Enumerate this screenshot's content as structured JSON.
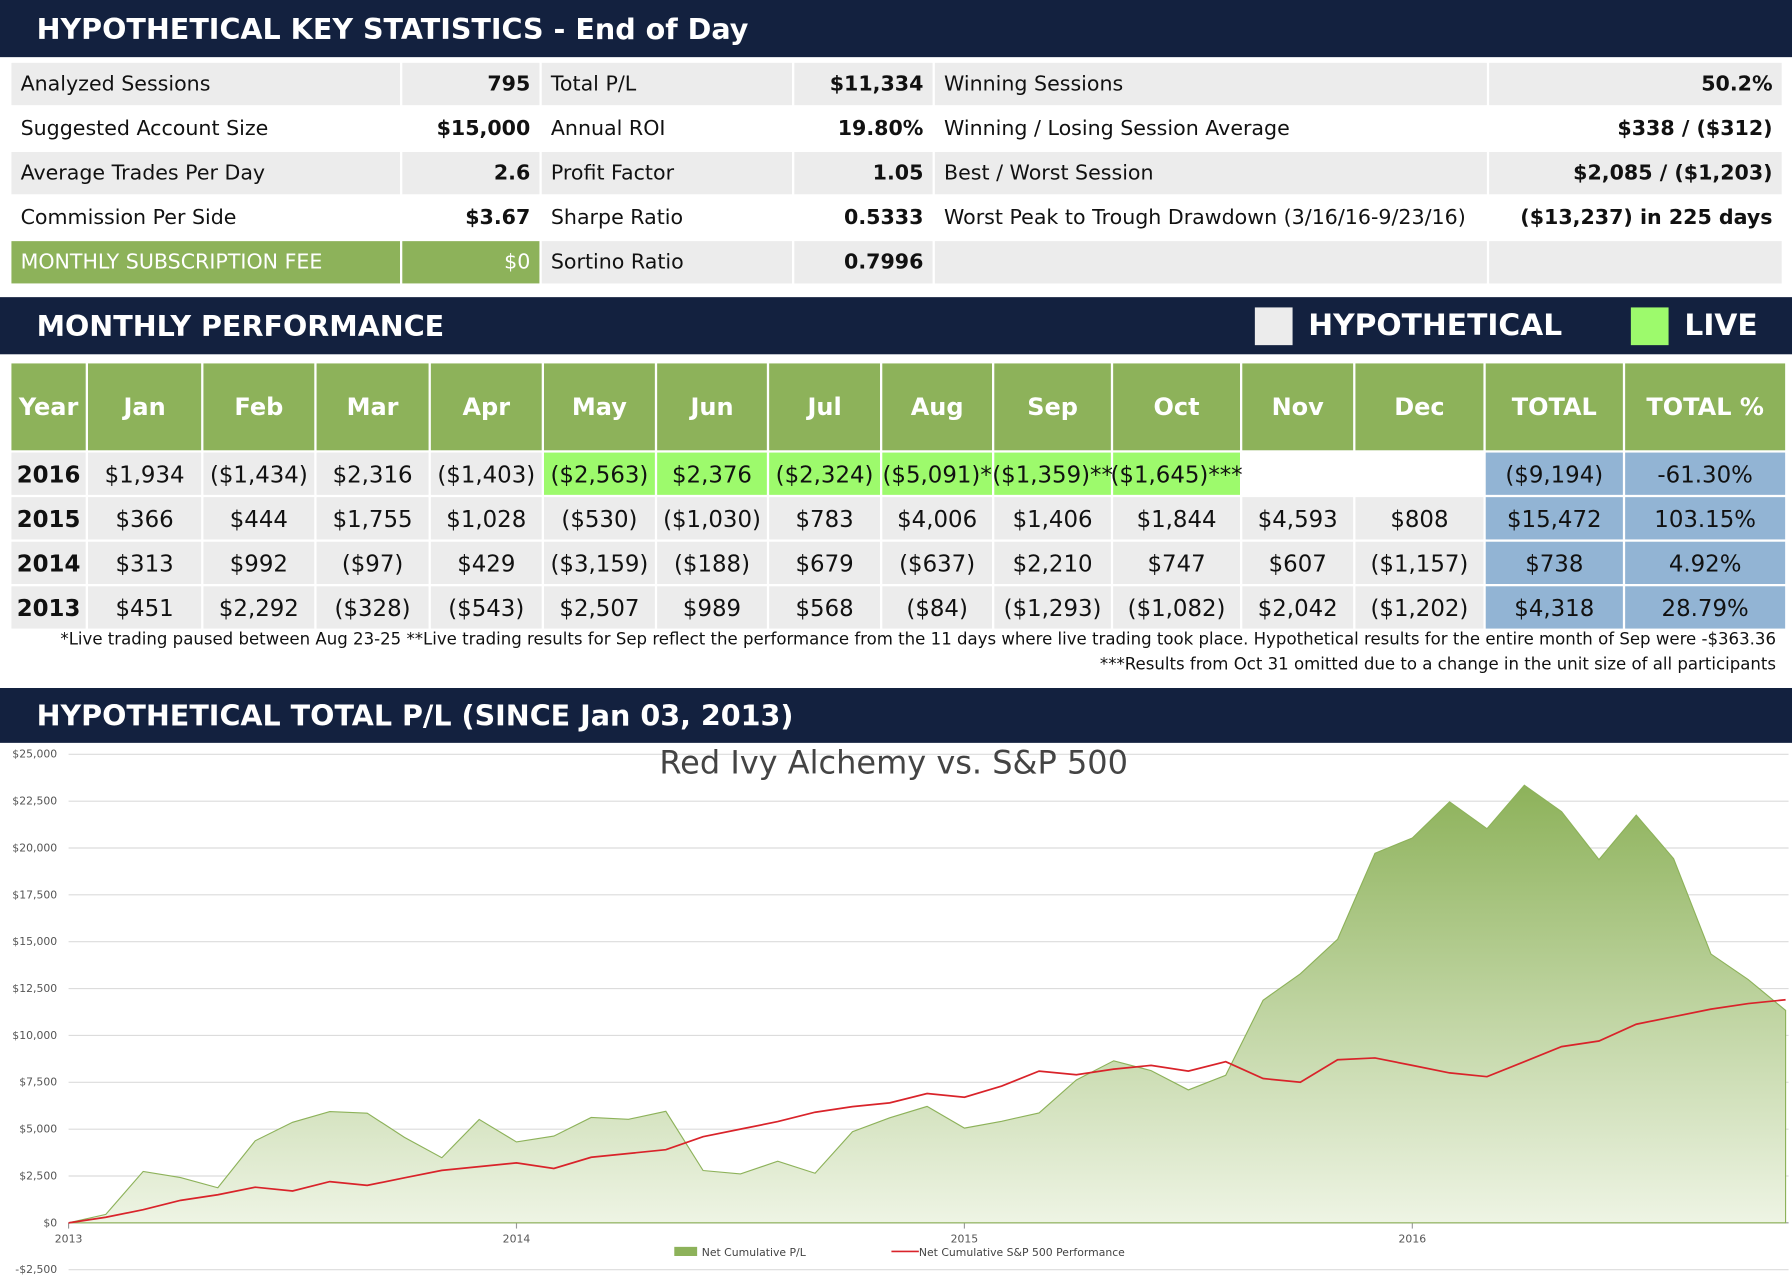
{
  "headers": {
    "key_stats": "HYPOTHETICAL KEY STATISTICS - End of Day",
    "monthly": "MONTHLY PERFORMANCE",
    "total_pl": "HYPOTHETICAL TOTAL P/L (SINCE Jan 03, 2013)"
  },
  "stats": [
    [
      {
        "label": "Analyzed Sessions",
        "value": "795"
      },
      {
        "label": "Total P/L",
        "value": "$11,334"
      },
      {
        "label": "Winning Sessions",
        "value": "50.2%"
      }
    ],
    [
      {
        "label": "Suggested Account Size",
        "value": "$15,000"
      },
      {
        "label": "Annual ROI",
        "value": "19.80%"
      },
      {
        "label": "Winning / Losing Session Average",
        "value": "$338 / ($312)"
      }
    ],
    [
      {
        "label": "Average Trades Per Day",
        "value": "2.6"
      },
      {
        "label": "Profit Factor",
        "value": "1.05"
      },
      {
        "label": "Best / Worst Session",
        "value": "$2,085 / ($1,203)"
      }
    ],
    [
      {
        "label": "Commission Per Side",
        "value": "$3.67"
      },
      {
        "label": "Sharpe Ratio",
        "value": "0.5333"
      },
      {
        "label": "Worst Peak to Trough Drawdown (3/16/16-9/23/16)",
        "value": "($13,237) in 225 days"
      }
    ],
    [
      {
        "label": "MONTHLY SUBSCRIPTION FEE",
        "value": "$0"
      },
      {
        "label": "Sortino Ratio",
        "value": "0.7996"
      }
    ]
  ],
  "legend": [
    {
      "label": "HYPOTHETICAL",
      "color": "#ececec"
    },
    {
      "label": "LIVE",
      "color": "#9dfa6c"
    }
  ],
  "monthly": {
    "header": [
      "Year",
      "Jan",
      "Feb",
      "Mar",
      "Apr",
      "May",
      "Jun",
      "Jul",
      "Aug",
      "Sep",
      "Oct",
      "Nov",
      "Dec",
      "TOTAL",
      "TOTAL %"
    ],
    "rows": [
      {
        "year": "2016",
        "months": [
          "$1,934",
          "($1,434)",
          "$2,316",
          "($1,403)",
          "($2,563)",
          "$2,376",
          "($2,324)",
          "($5,091)*",
          "($1,359)**",
          "($1,645)***"
        ],
        "live": [
          4,
          5,
          6,
          7,
          8,
          9
        ],
        "total": "($9,194)",
        "total_pct": "-61.30%"
      },
      {
        "year": "2015",
        "months": [
          "$366",
          "$444",
          "$1,755",
          "$1,028",
          "($530)",
          "($1,030)",
          "$783",
          "$4,006",
          "$1,406",
          "$1,844",
          "$4,593",
          "$808"
        ],
        "live": [],
        "total": "$15,472",
        "total_pct": "103.15%"
      },
      {
        "year": "2014",
        "months": [
          "$313",
          "$992",
          "($97)",
          "$429",
          "($3,159)",
          "($188)",
          "$679",
          "($637)",
          "$2,210",
          "$747",
          "$607",
          "($1,157)"
        ],
        "live": [],
        "total": "$738",
        "total_pct": "4.92%"
      },
      {
        "year": "2013",
        "months": [
          "$451",
          "$2,292",
          "($328)",
          "($543)",
          "$2,507",
          "$989",
          "$568",
          "($84)",
          "($1,293)",
          "($1,082)",
          "$2,042",
          "($1,202)"
        ],
        "live": [],
        "total": "$4,318",
        "total_pct": "28.79%"
      }
    ],
    "footnotes": [
      "*Live trading paused between Aug 23-25 **Live trading results for Sep reflect the performance from the 11 days where live trading took place. Hypothetical results for the entire month of Sep were -$363.36",
      "***Results from Oct 31 omitted due to a change in the unit size of all participants"
    ]
  },
  "chart_data": {
    "type": "area",
    "title": "Red Ivy Alchemy vs. S&P 500",
    "x": [
      2013,
      2013.0833,
      2013.1667,
      2013.25,
      2013.3333,
      2013.4167,
      2013.5,
      2013.5833,
      2013.6667,
      2013.75,
      2013.8333,
      2013.9167,
      2014,
      2014.0833,
      2014.1667,
      2014.25,
      2014.3333,
      2014.4167,
      2014.5,
      2014.5833,
      2014.6667,
      2014.75,
      2014.8333,
      2014.9167,
      2015,
      2015.0833,
      2015.1667,
      2015.25,
      2015.3333,
      2015.4167,
      2015.5,
      2015.5833,
      2015.6667,
      2015.75,
      2015.8333,
      2015.9167,
      2016,
      2016.0833,
      2016.1667,
      2016.25,
      2016.3333,
      2016.4167,
      2016.5,
      2016.5833,
      2016.6667,
      2016.75,
      2016.8333
    ],
    "series": [
      {
        "name": "Net Cumulative P/L",
        "color": "#8db25a",
        "values": [
          0,
          451,
          2743,
          2415,
          1872,
          4379,
          5368,
          5936,
          5852,
          4559,
          3477,
          5519,
          4317,
          4630,
          5622,
          5525,
          5954,
          2795,
          2607,
          3286,
          2649,
          4859,
          5606,
          6213,
          5056,
          5422,
          5866,
          7621,
          8649,
          8119,
          7089,
          7872,
          11878,
          13284,
          15128,
          19721,
          20529,
          22463,
          21029,
          23345,
          21942,
          19379,
          21755,
          19431,
          14340,
          12981,
          11336
        ]
      },
      {
        "name": "Net Cumulative S&P 500 Performance",
        "color": "#d9232a",
        "values": [
          0,
          300,
          700,
          1200,
          1500,
          1900,
          1700,
          2200,
          2000,
          2400,
          2800,
          3000,
          3200,
          2900,
          3500,
          3700,
          3900,
          4600,
          5000,
          5400,
          5900,
          6200,
          6400,
          6900,
          6700,
          7300,
          8100,
          7900,
          8200,
          8400,
          8100,
          8600,
          7700,
          7500,
          8700,
          8800,
          8400,
          8000,
          7800,
          8600,
          9400,
          9700,
          10600,
          11000,
          11400,
          11700,
          11900
        ]
      }
    ],
    "xlim": [
      2013,
      2016.84
    ],
    "xticks": [
      2013,
      2014,
      2015,
      2016
    ],
    "ylim": [
      -2500,
      25000
    ],
    "yticks": [
      {
        "value": -2500,
        "label": "-$2,500"
      },
      {
        "value": 0,
        "label": "$0"
      },
      {
        "value": 2500,
        "label": "$2,500"
      },
      {
        "value": 5000,
        "label": "$5,000"
      },
      {
        "value": 7500,
        "label": "$7,500"
      },
      {
        "value": 10000,
        "label": "$10,000"
      },
      {
        "value": 12500,
        "label": "$12,500"
      },
      {
        "value": 15000,
        "label": "$15,000"
      },
      {
        "value": 17500,
        "label": "$17,500"
      },
      {
        "value": 20000,
        "label": "$20,000"
      },
      {
        "value": 22500,
        "label": "$22,500"
      },
      {
        "value": 25000,
        "label": "$25,000"
      }
    ],
    "grid": true
  }
}
